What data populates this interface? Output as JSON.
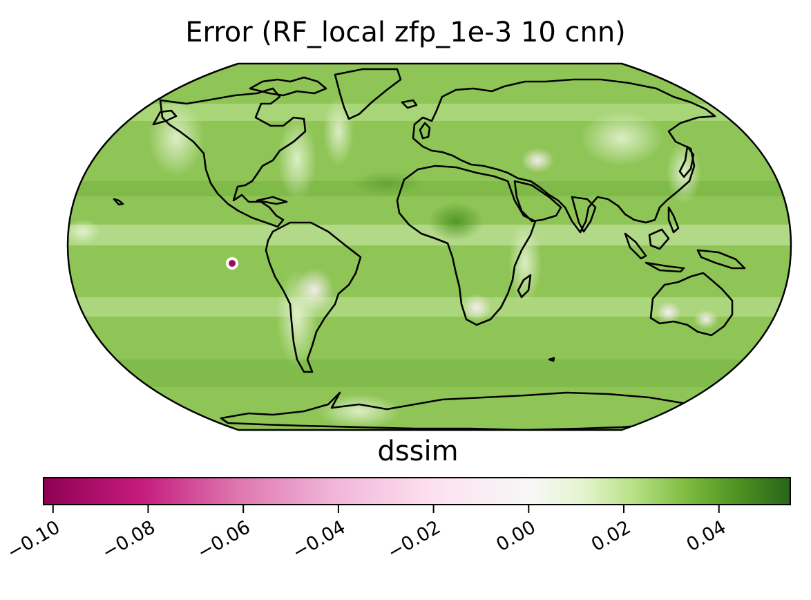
{
  "title": "Error (RF_local zfp_1e-3 10 cnn)",
  "colorbar": {
    "label": "dssim",
    "cmap": "PiYG",
    "range": [
      -0.102,
      0.055
    ],
    "ticks": [
      -0.1,
      -0.08,
      -0.06,
      -0.04,
      -0.02,
      0.0,
      0.02,
      0.04
    ],
    "tick_labels": [
      "−0.10",
      "−0.08",
      "−0.06",
      "−0.04",
      "−0.02",
      "0.00",
      "0.02",
      "0.04"
    ],
    "stops": [
      "#8e0152",
      "#c51b7d",
      "#de77ae",
      "#f1b6da",
      "#fde0ef",
      "#f7f7f7",
      "#e6f5d0",
      "#b8e186",
      "#7fbc41",
      "#4d9221",
      "#276419"
    ]
  },
  "map": {
    "projection": "Robinson",
    "ocean_color": "#86c04c",
    "coastline_color": "#000000"
  }
}
